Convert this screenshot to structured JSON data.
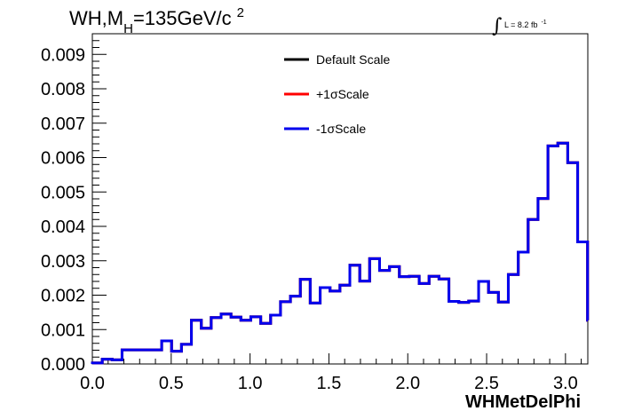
{
  "chart_data": {
    "type": "histogram",
    "title": {
      "prefix": "WH,M",
      "subscript": "H",
      "suffix": "=135GeV/c",
      "superscript": "2"
    },
    "luminosity": {
      "integral_symbol": "∫",
      "text": "L = 8.2 fb",
      "superscript": "-1"
    },
    "xlabel": "WHMetDelPhi",
    "ylabel": "",
    "xlim": [
      0,
      3.1416
    ],
    "ylim": [
      0,
      0.0096
    ],
    "x_ticks": [
      0.0,
      0.5,
      1.0,
      1.5,
      2.0,
      2.5,
      3.0
    ],
    "x_tick_labels": [
      "0.0",
      "0.5",
      "1.0",
      "1.5",
      "2.0",
      "2.5",
      "3.0"
    ],
    "y_ticks": [
      0.0,
      0.001,
      0.002,
      0.003,
      0.004,
      0.005,
      0.006,
      0.007,
      0.008,
      0.009
    ],
    "y_tick_labels": [
      "0.000",
      "0.001",
      "0.002",
      "0.003",
      "0.004",
      "0.005",
      "0.006",
      "0.007",
      "0.008",
      "0.009"
    ],
    "bin_width": 0.0628,
    "bin_edges_start": 0.0,
    "series": [
      {
        "name": "Default Scale",
        "color": "#000000",
        "values": [
          3e-05,
          0.00014,
          0.00012,
          0.00041,
          0.00041,
          0.00041,
          0.00041,
          0.00067,
          0.00037,
          0.00057,
          0.00127,
          0.00104,
          0.00135,
          0.00145,
          0.00136,
          0.00127,
          0.00137,
          0.00118,
          0.00142,
          0.00181,
          0.00197,
          0.00246,
          0.00177,
          0.00222,
          0.00212,
          0.00229,
          0.00287,
          0.00241,
          0.00306,
          0.00272,
          0.00283,
          0.00254,
          0.00255,
          0.00234,
          0.00255,
          0.00247,
          0.00182,
          0.00179,
          0.00183,
          0.0024,
          0.00208,
          0.0018,
          0.0026,
          0.00325,
          0.0042,
          0.00481,
          0.00634,
          0.00642,
          0.00585,
          0.00355,
          0.00127
        ]
      },
      {
        "name": "+1σScale",
        "color": "#ff0000",
        "values": [
          3e-05,
          0.00014,
          0.00012,
          0.00041,
          0.00041,
          0.00041,
          0.00041,
          0.00067,
          0.00037,
          0.00057,
          0.00127,
          0.00104,
          0.00135,
          0.00145,
          0.00136,
          0.00127,
          0.00137,
          0.00118,
          0.00142,
          0.00181,
          0.00197,
          0.00246,
          0.00177,
          0.00222,
          0.00212,
          0.00229,
          0.00287,
          0.00241,
          0.00306,
          0.00272,
          0.00283,
          0.00254,
          0.00255,
          0.00234,
          0.00255,
          0.00247,
          0.00182,
          0.00179,
          0.00183,
          0.0024,
          0.00208,
          0.0018,
          0.0026,
          0.00325,
          0.0042,
          0.00481,
          0.00634,
          0.00642,
          0.00585,
          0.00355,
          0.00127
        ]
      },
      {
        "name": "-1σScale",
        "color": "#0000ee",
        "values": [
          3e-05,
          0.00014,
          0.00012,
          0.00041,
          0.00041,
          0.00041,
          0.00041,
          0.00067,
          0.00037,
          0.00057,
          0.00127,
          0.00104,
          0.00135,
          0.00145,
          0.00136,
          0.00127,
          0.00137,
          0.00118,
          0.00142,
          0.00181,
          0.00197,
          0.00246,
          0.00177,
          0.00222,
          0.00212,
          0.00229,
          0.00287,
          0.00241,
          0.00306,
          0.00272,
          0.00283,
          0.00254,
          0.00255,
          0.00234,
          0.00255,
          0.00247,
          0.00182,
          0.00179,
          0.00183,
          0.0024,
          0.00208,
          0.0018,
          0.0026,
          0.00325,
          0.0042,
          0.00481,
          0.00634,
          0.00642,
          0.00585,
          0.00355,
          0.00127
        ]
      }
    ],
    "legend_placement": "top-center",
    "grid": false
  }
}
